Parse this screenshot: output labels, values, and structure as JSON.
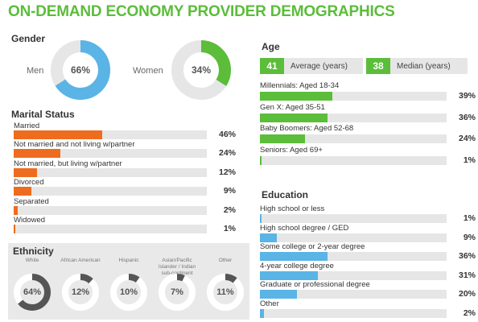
{
  "title": "ON-DEMAND ECONOMY PROVIDER DEMOGRAPHICS",
  "colors": {
    "green": "#5bbd3a",
    "blue": "#5ab4e6",
    "orange": "#ee6c1f",
    "gray_track": "#e6e6e6",
    "dark": "#555555"
  },
  "chart_data": [
    {
      "type": "pie",
      "title": "Gender",
      "categories": [
        "Men",
        "Women"
      ],
      "values": [
        66,
        34
      ],
      "value_labels": [
        "66%",
        "34%"
      ]
    },
    {
      "type": "bar",
      "title": "Marital Status",
      "categories": [
        "Married",
        "Not married and not living w/partner",
        "Not married, but living w/partner",
        "Divorced",
        "Separated",
        "Widowed"
      ],
      "values": [
        46,
        24,
        12,
        9,
        2,
        1
      ],
      "value_labels": [
        "46%",
        "24%",
        "12%",
        "9%",
        "2%",
        "1%"
      ]
    },
    {
      "type": "pie",
      "title": "Ethnicity",
      "categories": [
        "White",
        "African American",
        "Hispanic",
        "Asian/Pacific Islander / Indian sub-continent",
        "Other"
      ],
      "values": [
        64,
        12,
        10,
        7,
        11
      ],
      "value_labels": [
        "64%",
        "12%",
        "10%",
        "7%",
        "11%"
      ]
    },
    {
      "type": "bar",
      "title": "Age",
      "average": {
        "value": "41",
        "label": "Average (years)"
      },
      "median": {
        "value": "38",
        "label": "Median (years)"
      },
      "categories": [
        "Millennials: Aged 18-34",
        "Gen X: Aged 35-51",
        "Baby Boomers: Aged 52-68",
        "Seniors: Aged 69+"
      ],
      "values": [
        39,
        36,
        24,
        1
      ],
      "value_labels": [
        "39%",
        "36%",
        "24%",
        "1%"
      ]
    },
    {
      "type": "bar",
      "title": "Education",
      "categories": [
        "High school or less",
        "High school degree / GED",
        "Some college or 2-year degree",
        "4-year college degree",
        "Graduate or professional degree",
        "Other"
      ],
      "values": [
        1,
        9,
        36,
        31,
        20,
        2
      ],
      "value_labels": [
        "1%",
        "9%",
        "36%",
        "31%",
        "20%",
        "2%"
      ]
    }
  ]
}
